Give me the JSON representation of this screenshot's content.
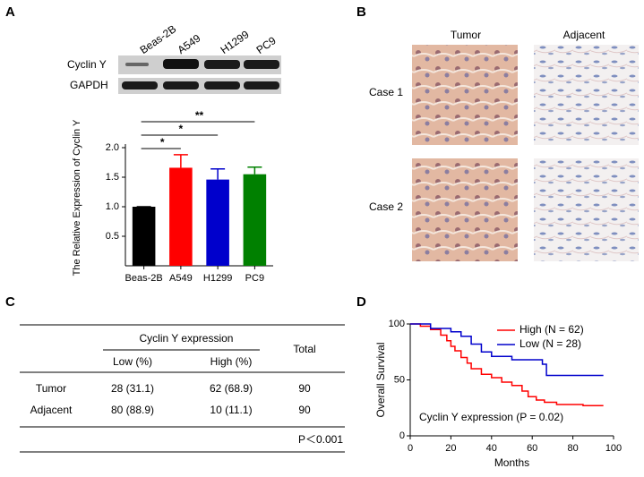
{
  "panel_labels": [
    "A",
    "B",
    "C",
    "D"
  ],
  "blot": {
    "lanes": [
      "Beas-2B",
      "A549",
      "H1299",
      "PC9"
    ],
    "rows": [
      "Cyclin Y",
      "GAPDH"
    ]
  },
  "ihc": {
    "columns": [
      "Tumor",
      "Adjacent"
    ],
    "rows": [
      "Case 1",
      "Case 2"
    ]
  },
  "chart_data": [
    {
      "type": "bar",
      "ylabel": "The Relative Expression of Cyclin Y",
      "categories": [
        "Beas-2B",
        "A549",
        "H1299",
        "PC9"
      ],
      "values": [
        1.0,
        1.66,
        1.46,
        1.55
      ],
      "errors": [
        0,
        0.22,
        0.18,
        0.12
      ],
      "colors": [
        "#000000",
        "#ff0000",
        "#0000cc",
        "#008000"
      ],
      "ylim": [
        0,
        2
      ],
      "yticks": [
        0.5,
        {
          "value": 1,
          "label": "1.0"
        },
        1.5,
        {
          "value": 2,
          "label": "2.0"
        }
      ],
      "significance": [
        "*",
        "*",
        "**"
      ]
    },
    {
      "type": "step",
      "xlabel": "Months",
      "ylabel": "Overall Survival",
      "annotation": "Cyclin Y expression (P = 0.02)",
      "xlim": [
        0,
        100
      ],
      "xticks": [
        0,
        20,
        40,
        60,
        80,
        100
      ],
      "ylim": [
        0,
        100
      ],
      "yticks": [
        0,
        50,
        100
      ],
      "legend": "top-right",
      "series": [
        {
          "name": "High (N = 62)",
          "color": "#ff0000",
          "x": [
            0,
            5,
            10,
            15,
            18,
            20,
            22,
            25,
            28,
            30,
            35,
            40,
            45,
            50,
            55,
            58,
            62,
            66,
            72,
            85,
            95
          ],
          "values": [
            100,
            98,
            95,
            90,
            85,
            80,
            76,
            70,
            65,
            60,
            55,
            52,
            48,
            45,
            40,
            35,
            32,
            30,
            28,
            27,
            27
          ]
        },
        {
          "name": "Low (N = 28)",
          "color": "#0000cc",
          "x": [
            0,
            10,
            20,
            25,
            30,
            35,
            40,
            50,
            65,
            67,
            95
          ],
          "values": [
            100,
            96,
            93,
            89,
            82,
            75,
            71,
            68,
            64,
            54,
            54
          ]
        }
      ]
    }
  ],
  "table": {
    "group_header": "Cyclin Y expression",
    "total_header": "Total",
    "subheaders": [
      "Low (%)",
      "High (%)"
    ],
    "rows": [
      [
        "Tumor",
        "28 (31.1)",
        "62 (68.9)",
        "90"
      ],
      [
        "Adjacent",
        "80 (88.9)",
        "10 (11.1)",
        "90"
      ]
    ],
    "footer": "P＜0.001"
  }
}
